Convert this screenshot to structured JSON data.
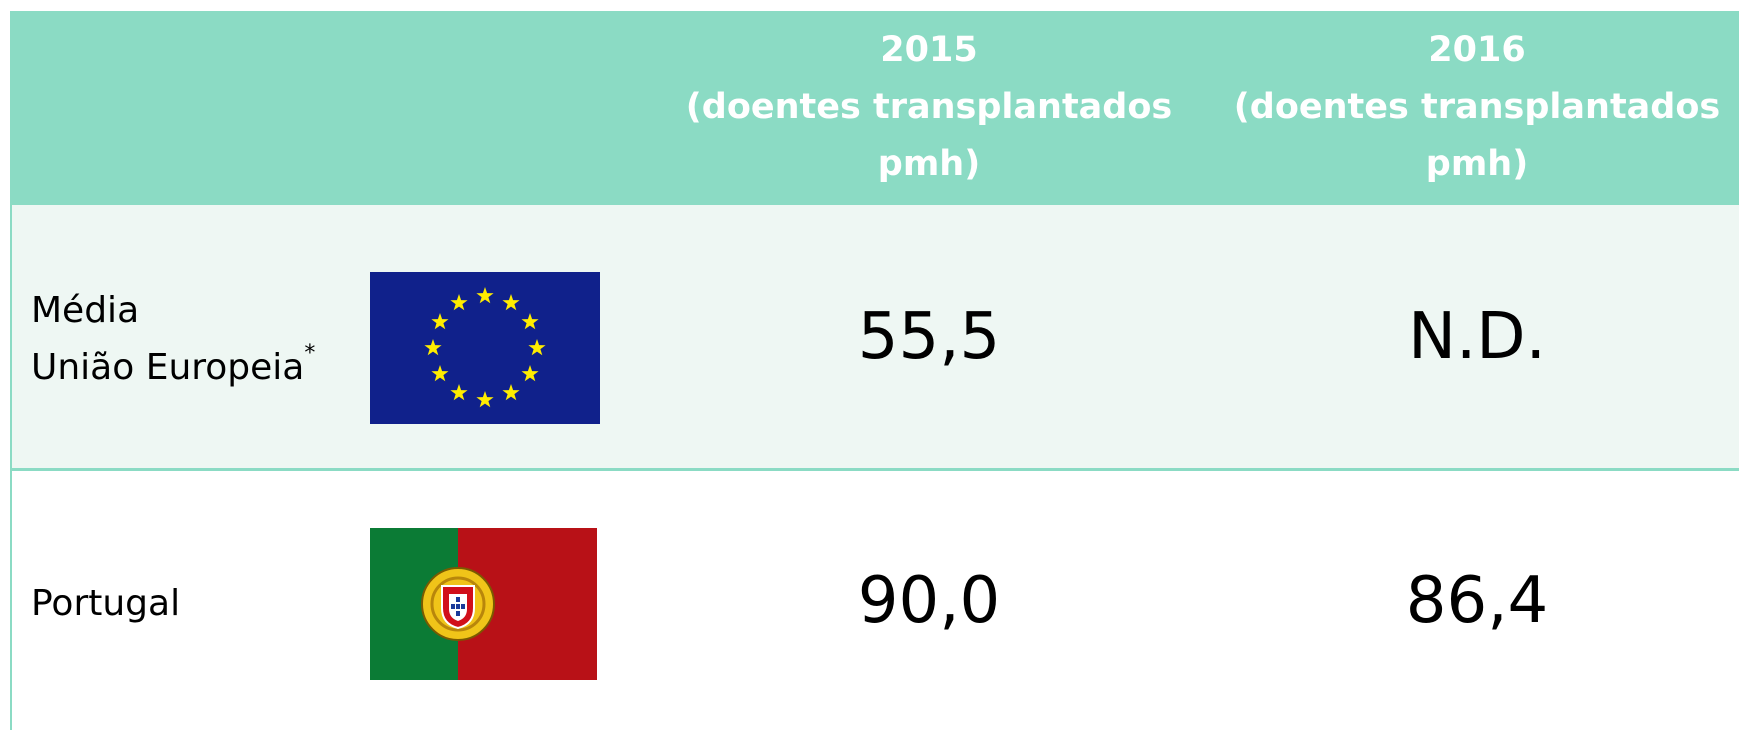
{
  "table": {
    "header": [
      {
        "year": "2015",
        "unit": [
          "(doentes transplantados",
          "pmh)"
        ]
      },
      {
        "year": "2016",
        "unit": [
          "(doentes transplantados",
          "pmh)"
        ]
      }
    ],
    "rows": [
      {
        "label": [
          "Média",
          "União Europeia"
        ],
        "note_mark": "*",
        "values": [
          "55,5",
          "N.D."
        ]
      },
      {
        "label": [
          "Portugal"
        ],
        "values": [
          "90,0",
          "86,4"
        ]
      }
    ]
  }
}
